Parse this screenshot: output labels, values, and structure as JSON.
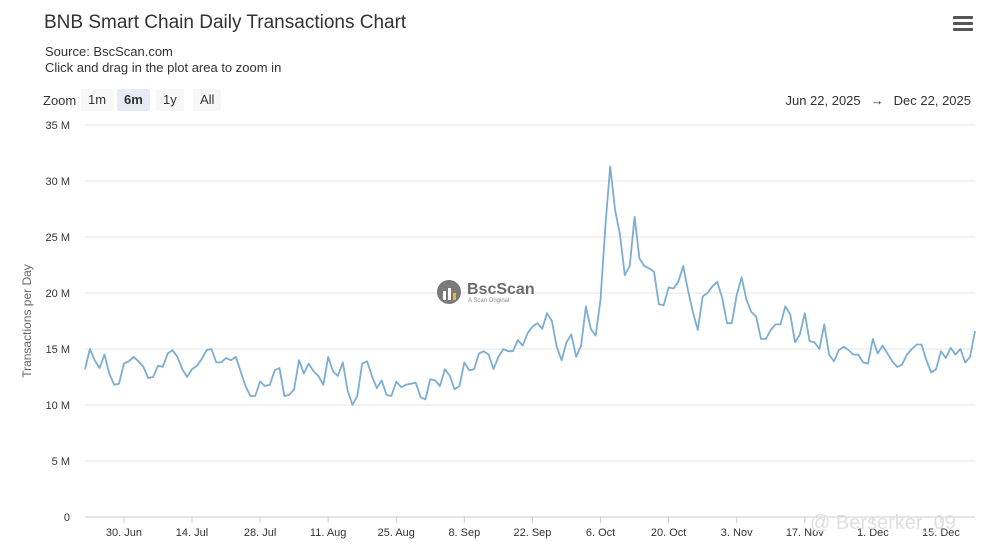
{
  "header": {
    "title": "BNB Smart Chain Daily Transactions Chart",
    "source": "Source: BscScan.com",
    "hint": "Click and drag in the plot area to zoom in"
  },
  "zoom": {
    "label": "Zoom",
    "buttons": [
      {
        "label": "1m",
        "active": false
      },
      {
        "label": "6m",
        "active": true
      },
      {
        "label": "1y",
        "active": false
      },
      {
        "label": "All",
        "active": false
      }
    ]
  },
  "range": {
    "from": "Jun 22, 2025",
    "arrow": "→",
    "to": "Dec 22, 2025"
  },
  "watermark": {
    "name": "BscScan",
    "sub": "A Scan Original"
  },
  "credit": "@ Berserker_09",
  "colors": {
    "line": "#7cadd3",
    "grid": "#e6e6e6"
  },
  "chart_data": {
    "type": "line",
    "title": "BNB Smart Chain Daily Transactions Chart",
    "subtitle": "Source: BscScan.com",
    "xlabel": "",
    "ylabel": "Transactions per Day",
    "ylim": [
      0,
      35000000
    ],
    "yticks": [
      "0",
      "5 M",
      "10 M",
      "15 M",
      "20 M",
      "25 M",
      "30 M",
      "35 M"
    ],
    "xticks": [
      "30. Jun",
      "14. Jul",
      "28. Jul",
      "11. Aug",
      "25. Aug",
      "8. Sep",
      "22. Sep",
      "6. Oct",
      "20. Oct",
      "3. Nov",
      "17. Nov",
      "1. Dec",
      "15. Dec"
    ],
    "x_start": "2025-06-22",
    "x_end": "2025-12-22",
    "grid": true,
    "legend": "none",
    "series": [
      {
        "values": [
          13.2,
          15.0,
          14.0,
          13.3,
          14.5,
          12.8,
          11.8,
          11.9,
          13.7,
          13.9,
          14.3,
          13.9,
          13.4,
          12.4,
          12.5,
          13.5,
          13.4,
          14.6,
          14.9,
          14.3,
          13.2,
          12.5,
          13.2,
          13.5,
          14.1,
          14.9,
          15.0,
          13.8,
          13.8,
          14.2,
          14.0,
          14.3,
          13.0,
          11.7,
          10.8,
          10.8,
          12.1,
          11.7,
          11.8,
          13.1,
          13.3,
          10.8,
          10.9,
          11.4,
          14.0,
          12.8,
          13.7,
          13.0,
          12.6,
          11.8,
          14.3,
          13.0,
          12.6,
          13.8,
          11.3,
          10.0,
          10.8,
          13.7,
          13.9,
          12.6,
          11.5,
          12.2,
          10.9,
          10.8,
          12.1,
          11.6,
          11.8,
          11.9,
          12.0,
          10.7,
          10.5,
          12.3,
          12.2,
          11.7,
          13.2,
          12.6,
          11.4,
          11.7,
          13.8,
          13.1,
          13.2,
          14.6,
          14.8,
          14.5,
          13.2,
          14.3,
          15.0,
          14.8,
          14.8,
          15.8,
          15.3,
          16.4,
          17.0,
          17.3,
          16.8,
          18.2,
          17.5,
          15.2,
          14.0,
          15.6,
          16.3,
          14.3,
          15.3,
          18.8,
          16.8,
          16.2,
          19.4,
          26.0,
          31.3,
          27.4,
          25.2,
          21.6,
          22.4,
          26.8,
          23.1,
          22.4,
          22.2,
          21.9,
          19.0,
          18.9,
          20.5,
          20.4,
          21.0,
          22.4,
          20.2,
          18.3,
          16.7,
          19.7,
          20.0,
          20.6,
          21.0,
          19.6,
          17.3,
          17.3,
          19.8,
          21.4,
          19.4,
          18.3,
          17.9,
          15.9,
          15.9,
          16.7,
          17.2,
          17.2,
          18.8,
          18.1,
          15.6,
          16.3,
          18.2,
          15.7,
          15.6,
          15.0,
          17.2,
          14.5,
          13.9,
          14.9,
          15.2,
          14.9,
          14.5,
          14.5,
          13.8,
          13.7,
          15.9,
          14.6,
          15.3,
          14.6,
          13.9,
          13.4,
          13.6,
          14.5,
          15.0,
          15.4,
          15.4,
          14.0,
          12.9,
          13.2,
          14.8,
          14.2,
          15.1,
          14.5,
          15.0,
          13.8,
          14.3,
          16.6
        ]
      }
    ]
  }
}
